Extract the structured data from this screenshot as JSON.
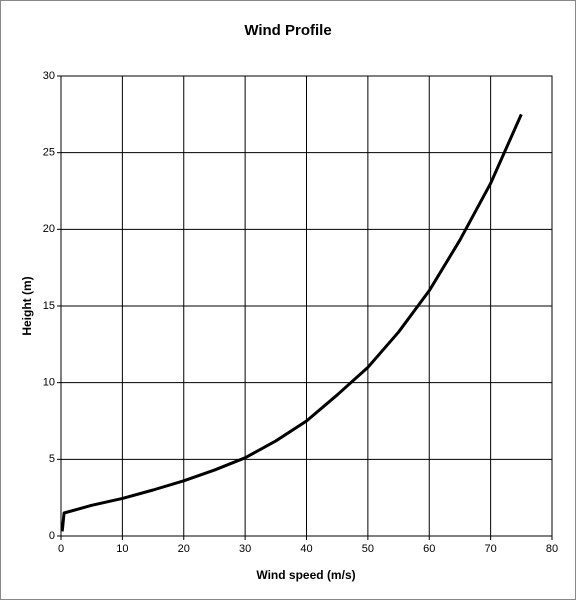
{
  "chart_data": {
    "type": "line",
    "title": "Wind Profile",
    "x_label": "Wind speed (m/s)",
    "y_label": "Height (m)",
    "x": [
      0.2,
      0.5,
      5,
      10,
      15,
      20,
      25,
      30,
      35,
      40,
      45,
      50,
      55,
      60,
      65,
      70,
      75
    ],
    "series": [
      {
        "color": "#000000",
        "values": [
          0.3,
          1.5,
          2.0,
          2.45,
          3.0,
          3.6,
          4.3,
          5.1,
          6.2,
          7.5,
          9.2,
          11,
          13.3,
          16,
          19.3,
          23,
          27.5
        ]
      }
    ],
    "xlim": [
      0,
      80
    ],
    "xticks": [
      0,
      10,
      20,
      30,
      40,
      50,
      60,
      70,
      80
    ],
    "ylim": [
      0,
      30
    ],
    "yticks": [
      0,
      5,
      10,
      15,
      20,
      25,
      30
    ],
    "grid": true
  }
}
